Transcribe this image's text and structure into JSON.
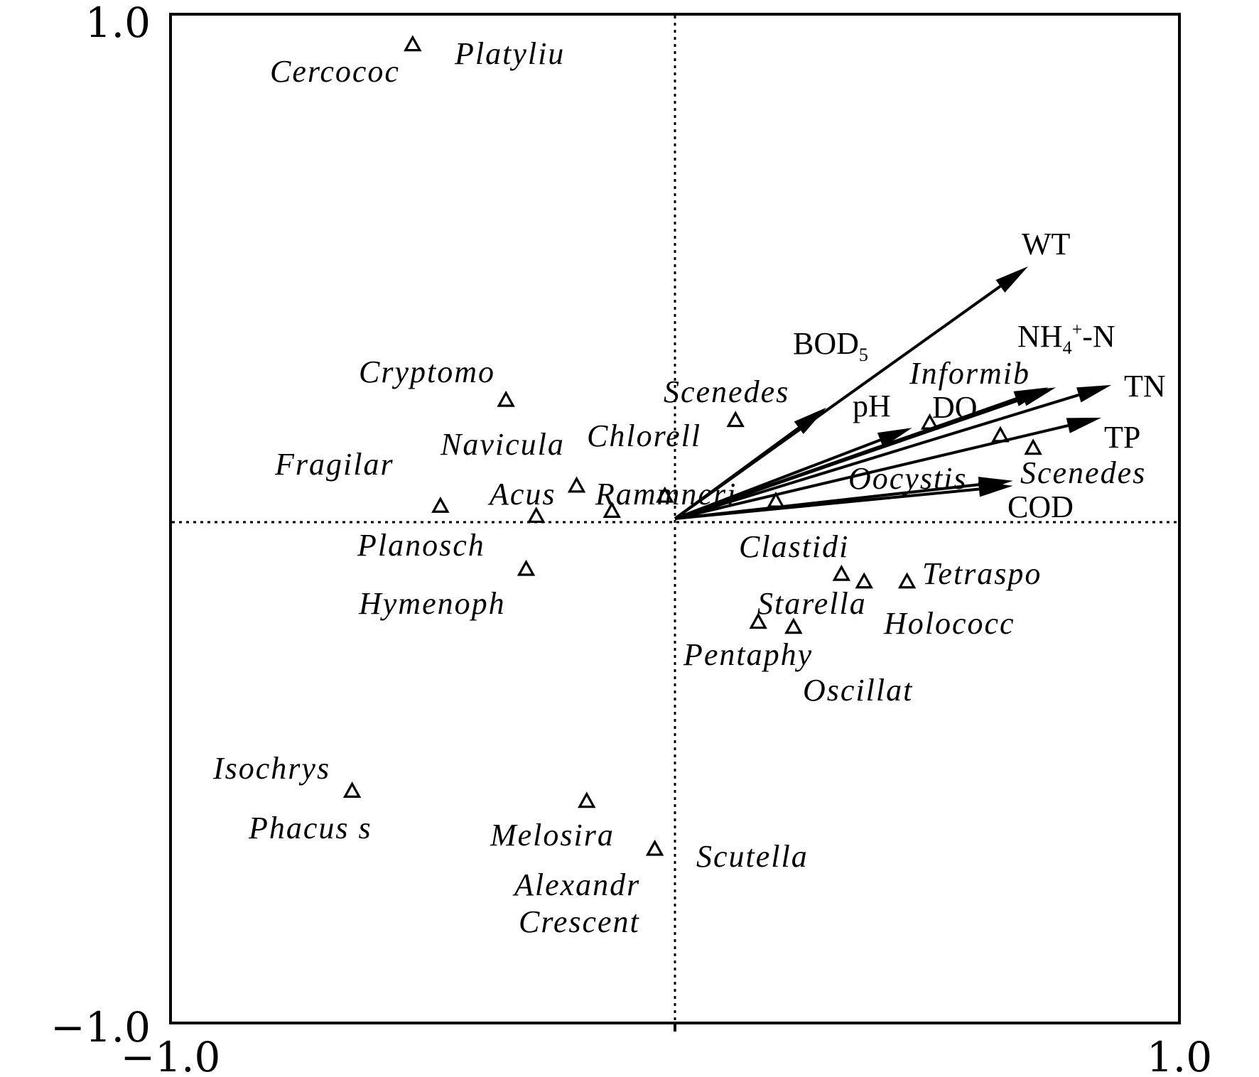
{
  "chart_data": {
    "type": "scatter",
    "title": "",
    "xlabel": "",
    "ylabel": "",
    "xlim": [
      -1.0,
      1.0
    ],
    "ylim": [
      -1.0,
      1.0
    ],
    "x_tick_labels": [
      "−1.0",
      "1.0"
    ],
    "y_tick_labels": [
      "1.0",
      "−1.0"
    ],
    "zero_lines": "dotted",
    "grid": false,
    "legend": "none",
    "species": [
      {
        "name": "Platyliu",
        "x": -0.52,
        "y": 0.94
      },
      {
        "name": "Cercococ",
        "x": -0.52,
        "y": 0.94
      },
      {
        "name": "Cryptomo",
        "x": -0.335,
        "y": 0.235
      },
      {
        "name": "Fragilar",
        "x": -0.465,
        "y": 0.025
      },
      {
        "name": "Navicula",
        "x": -0.195,
        "y": 0.065
      },
      {
        "name": "Acus",
        "x": -0.195,
        "y": 0.065
      },
      {
        "name": "Planosch",
        "x": -0.275,
        "y": 0.005
      },
      {
        "name": "Rammneri",
        "x": -0.125,
        "y": 0.015
      },
      {
        "name": "Chlorell",
        "x": -0.02,
        "y": 0.045
      },
      {
        "name": "Scenedes",
        "x": 0.12,
        "y": 0.195
      },
      {
        "name": "Hymenoph",
        "x": -0.295,
        "y": -0.1
      },
      {
        "name": "Informib",
        "x": 0.505,
        "y": 0.19
      },
      {
        "name": "Oocystis",
        "x": 0.645,
        "y": 0.165
      },
      {
        "name": "Scenedes",
        "x": 0.71,
        "y": 0.14
      },
      {
        "name": "Clastidi",
        "x": 0.2,
        "y": 0.035
      },
      {
        "name": "Tetraspo",
        "x": 0.46,
        "y": -0.125
      },
      {
        "name": "Starella",
        "x": 0.33,
        "y": -0.11
      },
      {
        "name": "Holococc",
        "x": 0.375,
        "y": -0.125
      },
      {
        "name": "Pentaphy",
        "x": 0.165,
        "y": -0.205
      },
      {
        "name": "Oscillat",
        "x": 0.235,
        "y": -0.215
      },
      {
        "name": "Isochrys",
        "x": -0.64,
        "y": -0.54
      },
      {
        "name": "Phacus s",
        "x": -0.64,
        "y": -0.54
      },
      {
        "name": "Melosira",
        "x": -0.175,
        "y": -0.56
      },
      {
        "name": "Alexandr",
        "x": -0.04,
        "y": -0.655
      },
      {
        "name": "Crescent",
        "x": -0.04,
        "y": -0.655
      },
      {
        "name": "Scutella",
        "x": -0.04,
        "y": -0.655
      }
    ],
    "env_vectors": [
      {
        "name": "WT",
        "x": 0.7,
        "y": 0.5
      },
      {
        "name": "BOD",
        "sub": "5",
        "x": 0.3,
        "y": 0.22
      },
      {
        "name": "pH",
        "x": 0.47,
        "y": 0.18
      },
      {
        "name": "DO",
        "x": 0.755,
        "y": 0.26
      },
      {
        "name": "NH",
        "sub": "4",
        "sup": "+",
        "suffix": "-N",
        "x": 0.74,
        "y": 0.26
      },
      {
        "name": "TN",
        "x": 0.865,
        "y": 0.265
      },
      {
        "name": "TP",
        "x": 0.845,
        "y": 0.2
      },
      {
        "name": "COD",
        "x": 0.67,
        "y": 0.075
      },
      {
        "name": "",
        "x": 0.67,
        "y": 0.065
      }
    ]
  }
}
